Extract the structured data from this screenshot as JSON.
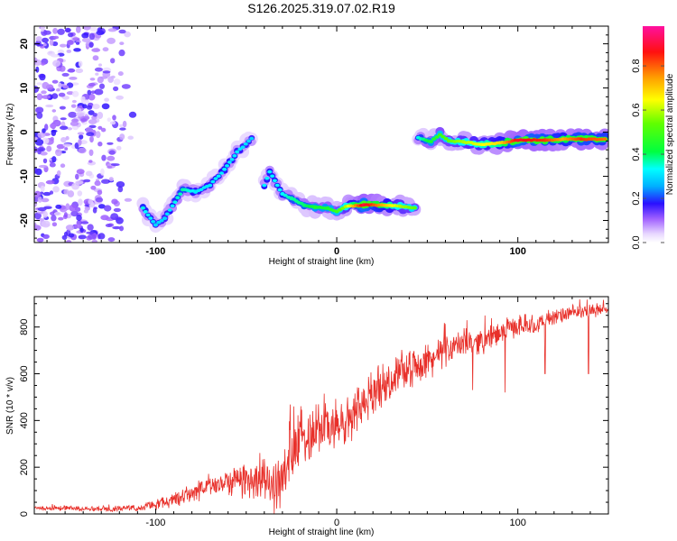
{
  "title": "S126.2025.319.07.02.R19",
  "chart_data": [
    {
      "type": "heatmap",
      "name": "spectrogram",
      "xlabel": "Height of straight line (km)",
      "ylabel": "Frequency (Hz)",
      "xlim": [
        -167,
        150
      ],
      "ylim": [
        -25,
        24
      ],
      "x_ticks": [
        -100,
        0,
        100
      ],
      "x_tick_labels": [
        "-100",
        "0",
        "100"
      ],
      "y_ticks": [
        -20,
        -10,
        0,
        10,
        20
      ],
      "y_tick_labels": [
        "-20",
        "-10",
        "0",
        "10",
        "20"
      ],
      "colorbar": {
        "label": "Normalized spectral amplitude",
        "range": [
          0,
          0.98
        ],
        "ticks": [
          0.0,
          0.2,
          0.4,
          0.6,
          0.8
        ],
        "tick_labels": [
          "0.0",
          "0.2",
          "0.4",
          "0.6",
          "0.8"
        ]
      },
      "ridge": [
        {
          "x": -107,
          "freq": -17.2,
          "amp": 0.35
        },
        {
          "x": -100,
          "freq": -21.0,
          "amp": 0.3
        },
        {
          "x": -95,
          "freq": -19.5,
          "amp": 0.3
        },
        {
          "x": -85,
          "freq": -13.0,
          "amp": 0.38
        },
        {
          "x": -78,
          "freq": -13.5,
          "amp": 0.32
        },
        {
          "x": -70,
          "freq": -12.0,
          "amp": 0.32
        },
        {
          "x": -62,
          "freq": -8.5,
          "amp": 0.33
        },
        {
          "x": -55,
          "freq": -4.5,
          "amp": 0.32
        },
        {
          "x": -47,
          "freq": -1.5,
          "amp": 0.3
        },
        {
          "x": -40,
          "freq": -12.0,
          "amp": 0.33
        },
        {
          "x": -37,
          "freq": -9.0,
          "amp": 0.33
        },
        {
          "x": -30,
          "freq": -14.0,
          "amp": 0.34
        },
        {
          "x": -25,
          "freq": -15.0,
          "amp": 0.38
        },
        {
          "x": -18,
          "freq": -16.5,
          "amp": 0.4
        },
        {
          "x": -12,
          "freq": -17.0,
          "amp": 0.45
        },
        {
          "x": -5,
          "freq": -17.2,
          "amp": 0.45
        },
        {
          "x": 0,
          "freq": -18.0,
          "amp": 0.5
        },
        {
          "x": 5,
          "freq": -16.8,
          "amp": 0.6
        },
        {
          "x": 15,
          "freq": -16.5,
          "amp": 0.92
        },
        {
          "x": 25,
          "freq": -16.5,
          "amp": 0.75
        },
        {
          "x": 35,
          "freq": -16.8,
          "amp": 0.6
        },
        {
          "x": 43,
          "freq": -17.2,
          "amp": 0.55
        },
        {
          "x": 45,
          "freq": -1.2,
          "amp": 0.35
        },
        {
          "x": 52,
          "freq": -2.2,
          "amp": 0.45
        },
        {
          "x": 57,
          "freq": -0.5,
          "amp": 0.5
        },
        {
          "x": 62,
          "freq": -2.0,
          "amp": 0.55
        },
        {
          "x": 70,
          "freq": -2.2,
          "amp": 0.6
        },
        {
          "x": 80,
          "freq": -2.8,
          "amp": 0.65
        },
        {
          "x": 90,
          "freq": -2.5,
          "amp": 0.7
        },
        {
          "x": 100,
          "freq": -1.8,
          "amp": 0.9
        },
        {
          "x": 115,
          "freq": -1.8,
          "amp": 0.85
        },
        {
          "x": 125,
          "freq": -1.6,
          "amp": 0.75
        },
        {
          "x": 135,
          "freq": -1.6,
          "amp": 0.85
        },
        {
          "x": 148,
          "freq": -1.6,
          "amp": 0.8
        }
      ],
      "noise_region": {
        "x_start": -167,
        "x_end": -110,
        "freq_min": -25,
        "freq_max": 24,
        "amp": 0.15
      }
    },
    {
      "type": "line",
      "name": "snr",
      "xlabel": "Height of straight line (km)",
      "ylabel": "SNR (10 * v/v)",
      "xlim": [
        -167,
        150
      ],
      "ylim": [
        0,
        930
      ],
      "x_ticks": [
        -100,
        0,
        100
      ],
      "x_tick_labels": [
        "-100",
        "0",
        "100"
      ],
      "y_ticks": [
        0,
        200,
        400,
        600,
        800
      ],
      "y_tick_labels": [
        "0",
        "200",
        "400",
        "600",
        "800"
      ],
      "color": "#e8302a",
      "envelope": {
        "x": [
          -167,
          -150,
          -130,
          -110,
          -100,
          -90,
          -80,
          -70,
          -60,
          -50,
          -40,
          -35,
          -30,
          -25,
          -20,
          -15,
          -10,
          -5,
          0,
          5,
          10,
          20,
          30,
          40,
          50,
          60,
          70,
          80,
          90,
          95,
          100,
          110,
          120,
          130,
          140,
          150
        ],
        "y": [
          25,
          25,
          22,
          25,
          40,
          60,
          90,
          120,
          140,
          150,
          150,
          110,
          150,
          250,
          310,
          360,
          380,
          380,
          370,
          380,
          430,
          520,
          580,
          620,
          650,
          700,
          730,
          740,
          770,
          800,
          800,
          810,
          840,
          860,
          870,
          880
        ]
      },
      "noise": {
        "x": [
          -167,
          -110,
          -60,
          -20,
          0,
          40,
          100,
          150
        ],
        "amp": [
          12,
          15,
          70,
          170,
          130,
          90,
          50,
          30
        ]
      },
      "dips": [
        {
          "x": 58,
          "y": 620
        },
        {
          "x": 75,
          "y": 530
        },
        {
          "x": 93,
          "y": 520
        },
        {
          "x": 115,
          "y": 600
        },
        {
          "x": 139,
          "y": 650
        },
        {
          "x": 139,
          "y": 600
        }
      ]
    }
  ]
}
